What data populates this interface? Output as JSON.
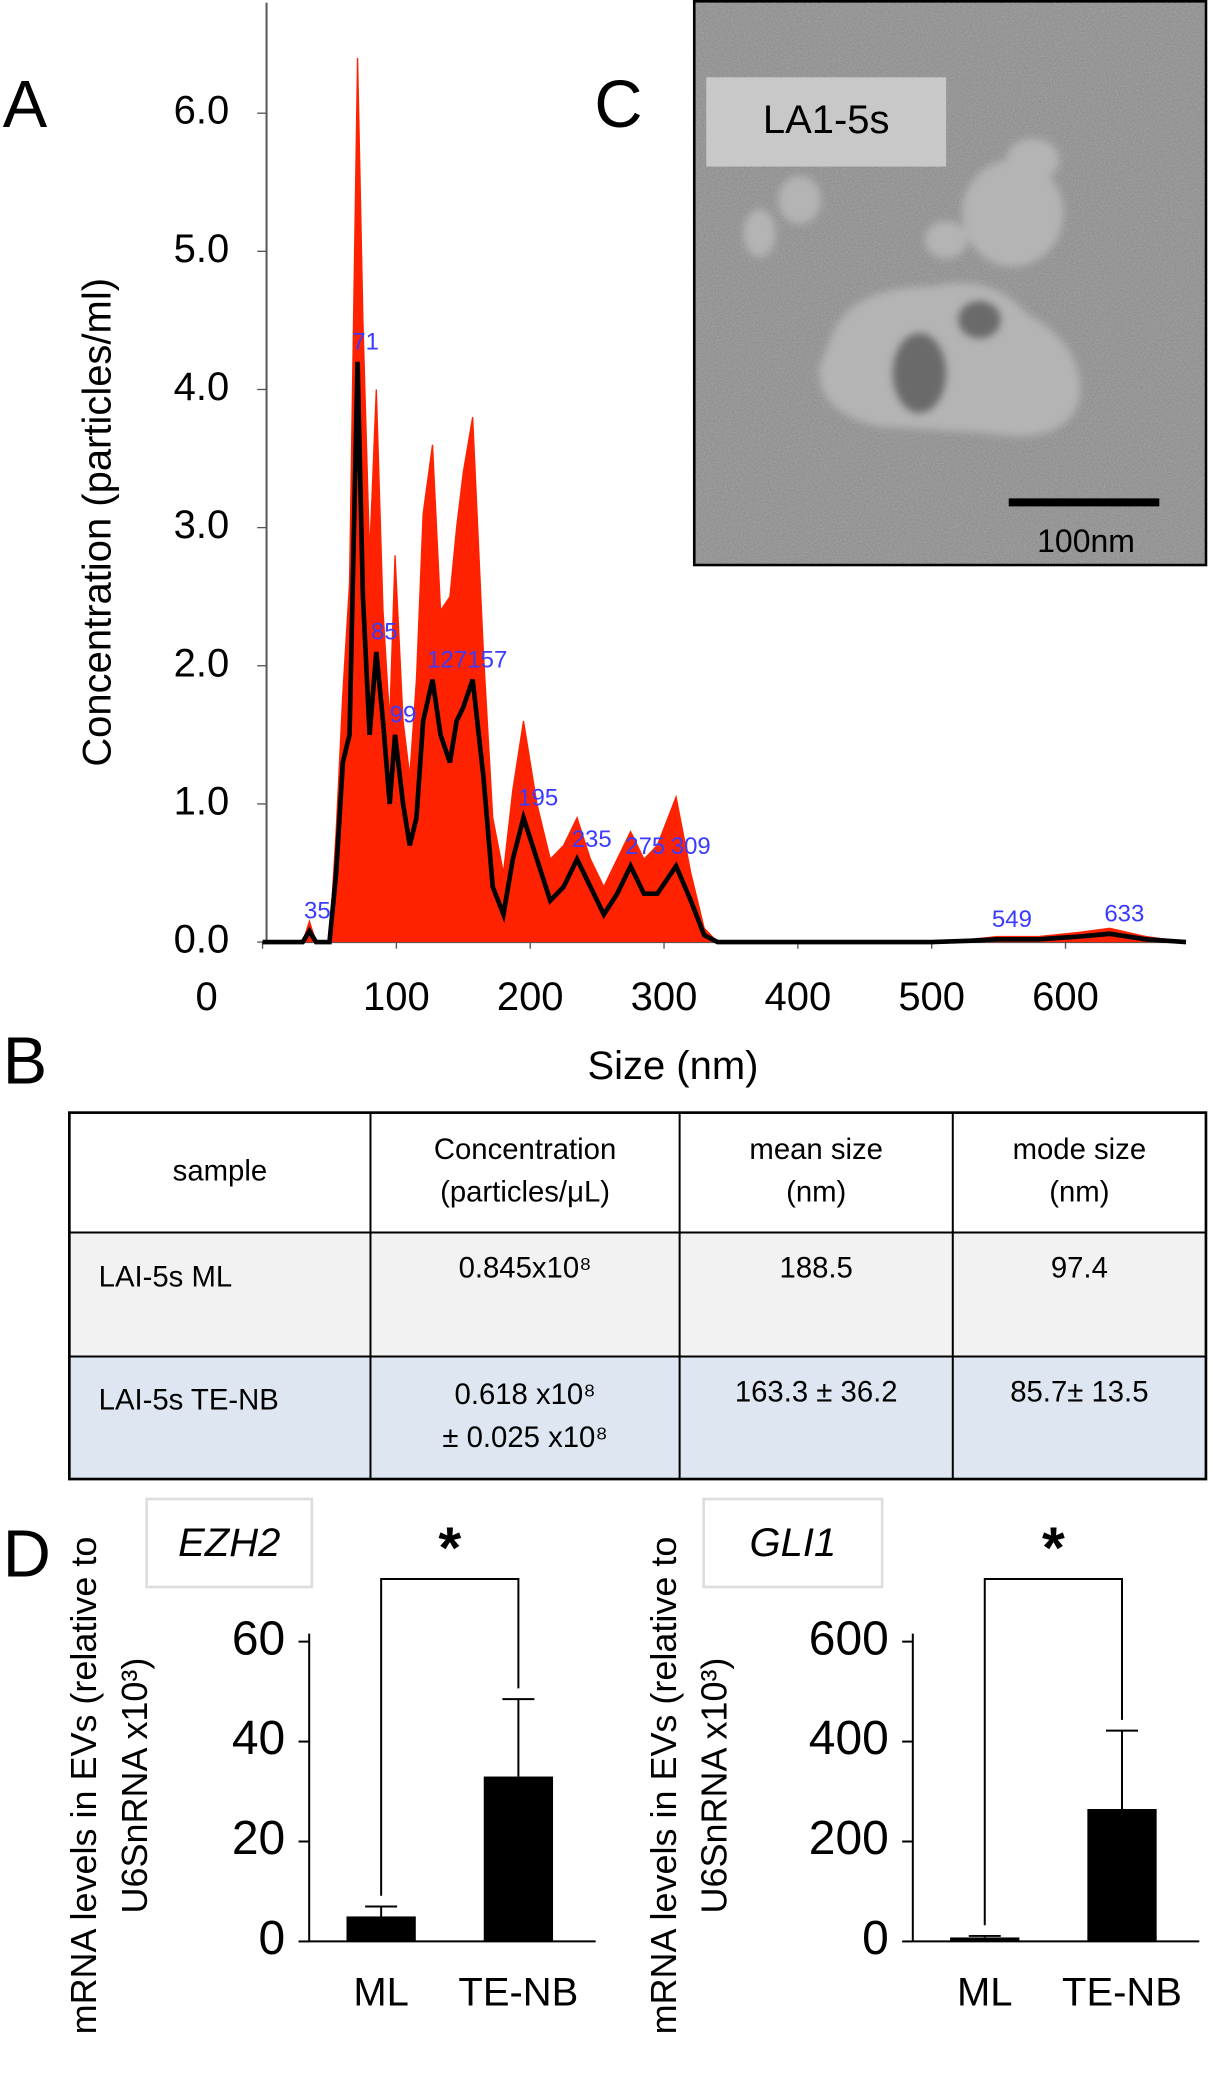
{
  "panel_labels": [
    "A",
    "B",
    "C",
    "D"
  ],
  "chart_data": [
    {
      "type": "area-line",
      "xlabel": "Size (nm)",
      "ylabel": "Concentration (particles/ml)",
      "xlim": [
        0,
        690
      ],
      "ylim": [
        0,
        6.8
      ],
      "xticks": [
        0,
        100,
        200,
        300,
        400,
        500,
        600
      ],
      "yticks": [
        {
          "value": 0,
          "label": "0.0"
        },
        {
          "value": 1,
          "label": "1.0"
        },
        {
          "value": 2,
          "label": "2.0"
        },
        {
          "value": 3,
          "label": "3.0"
        },
        {
          "value": 4,
          "label": "4.0"
        },
        {
          "value": 5,
          "label": "5.0"
        },
        {
          "value": 6,
          "label": "6.0"
        }
      ],
      "x": [
        0,
        30,
        35,
        40,
        50,
        55,
        60,
        65,
        71,
        75,
        80,
        85,
        90,
        95,
        99,
        105,
        110,
        115,
        120,
        127,
        133,
        140,
        145,
        150,
        157,
        165,
        172,
        180,
        187,
        195,
        205,
        215,
        225,
        235,
        245,
        255,
        265,
        275,
        285,
        295,
        309,
        320,
        330,
        340,
        400,
        500,
        530,
        549,
        580,
        610,
        633,
        660,
        690
      ],
      "series": [
        {
          "color": "#ff2200",
          "fill": true,
          "values": [
            0,
            0,
            0.15,
            0,
            0,
            0.8,
            1.8,
            2.6,
            6.4,
            4.5,
            2.8,
            4.0,
            2.4,
            1.6,
            2.8,
            1.6,
            1.2,
            1.9,
            3.1,
            3.6,
            2.4,
            2.5,
            3.0,
            3.4,
            3.8,
            2.1,
            0.9,
            0.5,
            1.1,
            1.6,
            1.0,
            0.6,
            0.7,
            0.9,
            0.6,
            0.4,
            0.6,
            0.8,
            0.6,
            0.7,
            1.05,
            0.5,
            0.1,
            0,
            0,
            0,
            0.02,
            0.04,
            0.04,
            0.07,
            0.1,
            0.04,
            0
          ]
        },
        {
          "color": "#000000",
          "fill": false,
          "values": [
            0,
            0,
            0.08,
            0,
            0,
            0.5,
            1.3,
            1.5,
            4.2,
            2.5,
            1.5,
            2.1,
            1.6,
            1.0,
            1.5,
            1.0,
            0.7,
            0.9,
            1.6,
            1.9,
            1.5,
            1.3,
            1.6,
            1.7,
            1.9,
            1.2,
            0.4,
            0.2,
            0.6,
            0.9,
            0.6,
            0.3,
            0.4,
            0.6,
            0.4,
            0.2,
            0.35,
            0.55,
            0.35,
            0.35,
            0.55,
            0.3,
            0.05,
            0,
            0,
            0,
            0.01,
            0.02,
            0.02,
            0.04,
            0.06,
            0.02,
            0
          ]
        }
      ],
      "peak_labels": [
        35,
        71,
        85,
        99,
        127,
        157,
        195,
        235,
        275,
        309,
        549,
        633
      ]
    },
    {
      "type": "bar",
      "title": "EZH2",
      "annotation": "*",
      "ylabel": [
        "mRNA levels in EVs (relative to",
        "U6SnRNA x10³)"
      ],
      "categories": [
        "ML",
        "TE-NB"
      ],
      "values": [
        5,
        33
      ],
      "errors": [
        2,
        15.5
      ],
      "color": "#000000",
      "ylim": [
        0,
        60
      ],
      "yticks": [
        0,
        20,
        40,
        60
      ]
    },
    {
      "type": "bar",
      "title": "GLI1",
      "annotation": "*",
      "ylabel": [
        "mRNA levels in EVs (relative to",
        "U6SnRNA x10³)"
      ],
      "categories": [
        "ML",
        "TE-NB"
      ],
      "values": [
        8,
        265
      ],
      "errors": [
        3,
        157
      ],
      "color": "#000000",
      "ylim": [
        0,
        600
      ],
      "yticks": [
        0,
        200,
        400,
        600
      ]
    }
  ],
  "table": {
    "header": [
      [
        "sample"
      ],
      [
        "Concentration",
        "(particles/μL)"
      ],
      [
        "mean size",
        "(nm)"
      ],
      [
        "mode size",
        "(nm)"
      ]
    ],
    "rows": [
      [
        [
          "LAI-5s ML"
        ],
        [
          "0.845x10⁸"
        ],
        [
          "188.5"
        ],
        [
          "97.4"
        ]
      ],
      [
        [
          "LAI-5s TE-NB"
        ],
        [
          "0.618 x10⁸",
          "± 0.025 x10⁸"
        ],
        [
          "163.3 ± 36.2"
        ],
        [
          "85.7± 13.5"
        ]
      ]
    ]
  },
  "micrograph": {
    "label": "LA1-5s",
    "scale_bar": "100nm"
  }
}
